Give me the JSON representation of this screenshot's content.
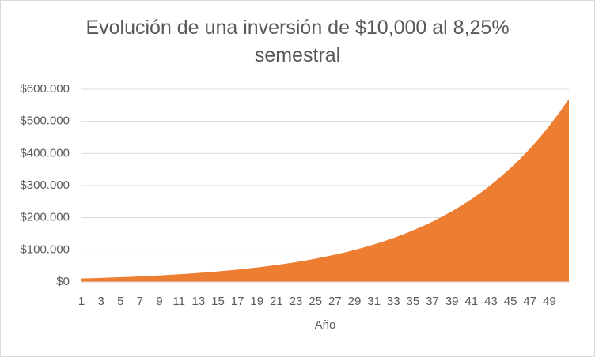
{
  "chart_data": {
    "type": "area",
    "title": "Evolución de una inversión de $10,000 al 8,25% semestral",
    "x_label": "Año",
    "categories": [
      1,
      null,
      3,
      null,
      5,
      null,
      7,
      null,
      9,
      null,
      11,
      null,
      13,
      null,
      15,
      null,
      17,
      null,
      19,
      null,
      21,
      null,
      23,
      null,
      25,
      null,
      27,
      null,
      29,
      null,
      31,
      null,
      33,
      null,
      35,
      null,
      37,
      null,
      39,
      null,
      41,
      null,
      43,
      null,
      45,
      null,
      47,
      null,
      49,
      null,
      null
    ],
    "values": [
      10825,
      11718,
      12685,
      13731,
      14864,
      16090,
      17418,
      18855,
      20410,
      22094,
      23917,
      25890,
      28026,
      30338,
      32841,
      35551,
      38484,
      41659,
      45096,
      48816,
      52843,
      57203,
      61922,
      67031,
      72561,
      78547,
      85027,
      92042,
      99636,
      107856,
      116754,
      126386,
      136813,
      148100,
      160318,
      173545,
      187862,
      203361,
      220138,
      238299,
      257959,
      279241,
      302278,
      327216,
      354211,
      383433,
      415066,
      449309,
      486377,
      526503,
      569940
    ],
    "color": "#ed7d31",
    "ylim": [
      0,
      600000
    ],
    "yticks": [
      {
        "value": 0,
        "label": "$0"
      },
      {
        "value": 100000,
        "label": "$100.000"
      },
      {
        "value": 200000,
        "label": "$200.000"
      },
      {
        "value": 300000,
        "label": "$300.000"
      },
      {
        "value": 400000,
        "label": "$400.000"
      },
      {
        "value": 500000,
        "label": "$500.000"
      },
      {
        "value": 600000,
        "label": "$600.000"
      }
    ],
    "grid": true
  }
}
